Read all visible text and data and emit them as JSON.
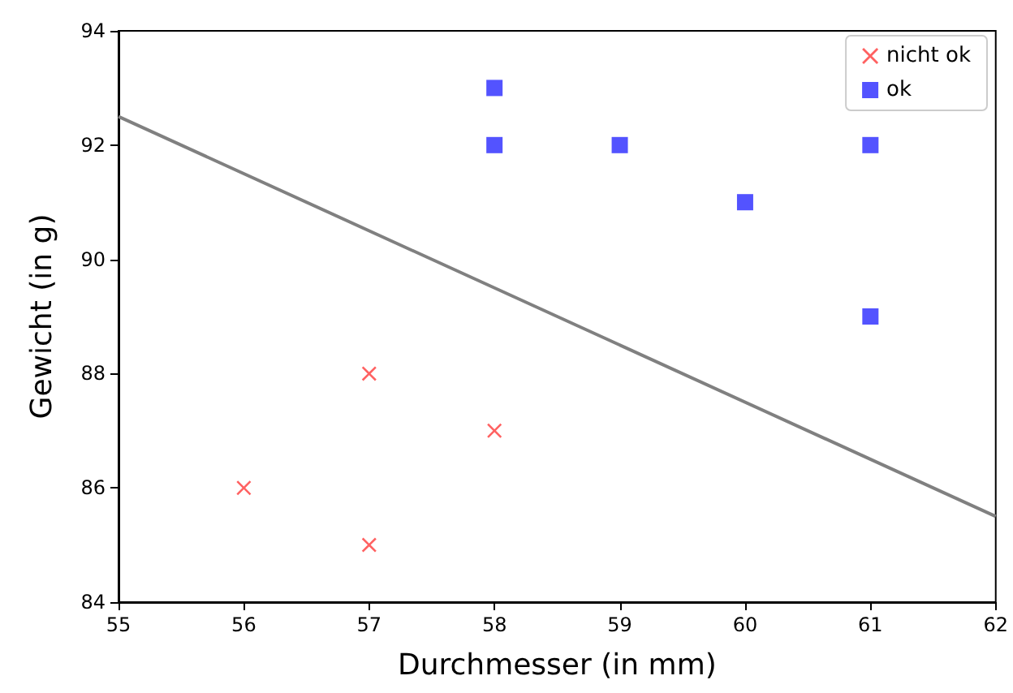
{
  "chart_data": {
    "type": "scatter",
    "xlabel": "Durchmesser (in mm)",
    "ylabel": "Gewicht (in g)",
    "xlim": [
      55,
      62
    ],
    "xticks": [
      55,
      56,
      57,
      58,
      59,
      60,
      61,
      62
    ],
    "ylim": [
      84,
      94
    ],
    "yticks": [
      84,
      86,
      88,
      90,
      92,
      94
    ],
    "grid": false,
    "legend": "top right",
    "series": [
      {
        "name": "nicht ok",
        "color": "#ff5050",
        "marker": "cross",
        "x": [
          56,
          57,
          57,
          58
        ],
        "values": [
          86,
          85,
          88,
          87
        ]
      },
      {
        "name": "ok",
        "color": "#4040ff",
        "marker": "square",
        "x": [
          58,
          58,
          59,
          60,
          61,
          61
        ],
        "values": [
          93,
          92,
          92,
          91,
          92,
          89
        ]
      },
      {
        "type": "line",
        "color": "#808080",
        "x": [
          55,
          62
        ],
        "values": [
          92.5,
          85.5
        ]
      }
    ]
  }
}
